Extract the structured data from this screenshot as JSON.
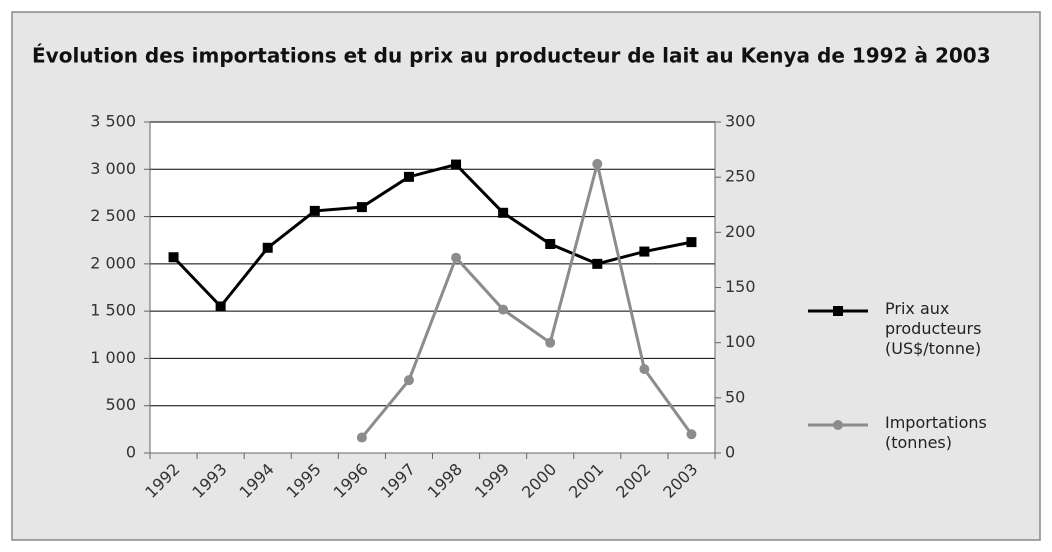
{
  "chart_data": {
    "type": "line",
    "title": "Évolution des importations et du prix au producteur de lait au Kenya de 1992 à 2003",
    "categories": [
      "1992",
      "1993",
      "1994",
      "1995",
      "1996",
      "1997",
      "1998",
      "1999",
      "2000",
      "2001",
      "2002",
      "2003"
    ],
    "series": [
      {
        "name": "Prix aux producteurs (US$/tonne)",
        "color": "#000000",
        "marker": "square",
        "values": [
          2070,
          1550,
          2170,
          2560,
          2600,
          2920,
          3050,
          2540,
          2210,
          2000,
          2130,
          2230
        ]
      },
      {
        "name": "Importations (tonnes)",
        "color": "#8c8c8c",
        "marker": "circle",
        "axis": "y2",
        "values": [
          null,
          null,
          null,
          null,
          14,
          66,
          177,
          130,
          100,
          262,
          76,
          17
        ]
      }
    ],
    "ylim": [
      0,
      3500
    ],
    "yticks": [
      0,
      500,
      {
        "value": 1000,
        "label": "1 000"
      },
      {
        "value": 1500,
        "label": "1 500"
      },
      {
        "value": 2000,
        "label": "2 000"
      },
      {
        "value": 2500,
        "label": "2 500"
      },
      {
        "value": 3000,
        "label": "3 000"
      },
      {
        "value": 3500,
        "label": "3 500"
      }
    ],
    "y2lim": [
      0,
      300
    ],
    "y2ticks": [
      0,
      50,
      100,
      150,
      200,
      250,
      300
    ],
    "grid": true,
    "legend": "right"
  }
}
